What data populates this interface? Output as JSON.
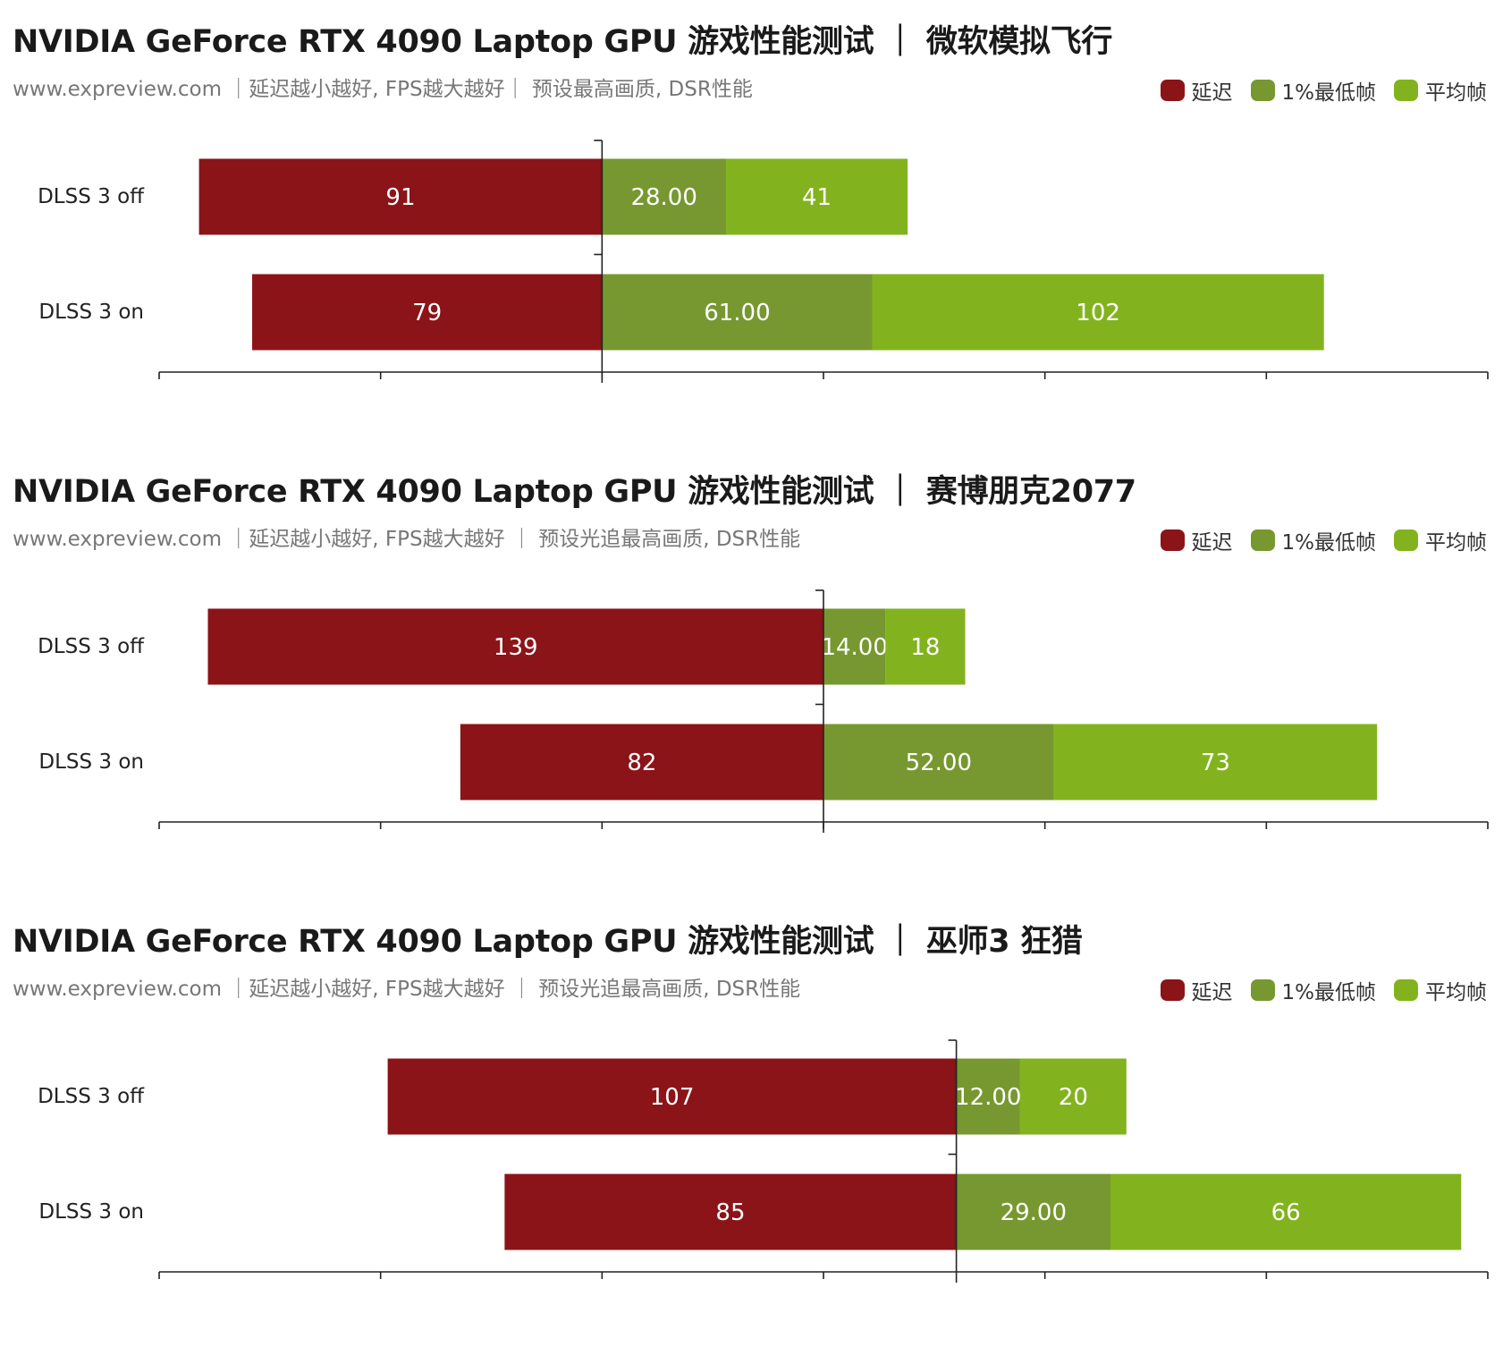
{
  "colors": {
    "latency": "#8b1418",
    "low1": "#779830",
    "avg": "#82b31e",
    "axis": "#222222"
  },
  "legend": {
    "latency": "延迟",
    "low1": "1%最低帧",
    "avg": "平均帧"
  },
  "chart_data": [
    {
      "type": "bar",
      "orientation": "horizontal-diverging-stacked",
      "title": "NVIDIA GeForce RTX 4090 Laptop GPU 游戏性能测试 ｜ 微软模拟飞行",
      "subtitle": "www.expreview.com ｜延迟越小越好, FPS越大越好｜ 预设最高画质, DSR性能",
      "categories": [
        "DLSS 3 off",
        "DLSS 3 on"
      ],
      "series": [
        {
          "name": "延迟",
          "values": [
            91,
            79
          ],
          "labels": [
            "91",
            "79"
          ]
        },
        {
          "name": "1%最低帧",
          "values": [
            28,
            61
          ],
          "labels": [
            "28.00",
            "61.00"
          ]
        },
        {
          "name": "平均帧",
          "values": [
            41,
            102
          ],
          "labels": [
            "41",
            "102"
          ]
        }
      ],
      "xlim": [
        -100,
        200
      ],
      "legend_position": "top-right"
    },
    {
      "type": "bar",
      "orientation": "horizontal-diverging-stacked",
      "title": "NVIDIA GeForce RTX 4090 Laptop GPU 游戏性能测试 ｜ 赛博朋克2077",
      "subtitle": "www.expreview.com ｜延迟越小越好, FPS越大越好 ｜ 预设光追最高画质, DSR性能",
      "categories": [
        "DLSS 3 off",
        "DLSS 3 on"
      ],
      "series": [
        {
          "name": "延迟",
          "values": [
            139,
            82
          ],
          "labels": [
            "139",
            "82"
          ]
        },
        {
          "name": "1%最低帧",
          "values": [
            14,
            52
          ],
          "labels": [
            "14.00",
            "52.00"
          ]
        },
        {
          "name": "平均帧",
          "values": [
            18,
            73
          ],
          "labels": [
            "18",
            "73"
          ]
        }
      ],
      "xlim": [
        -150,
        150
      ],
      "legend_position": "top-right"
    },
    {
      "type": "bar",
      "orientation": "horizontal-diverging-stacked",
      "title": "NVIDIA GeForce RTX 4090 Laptop GPU 游戏性能测试 ｜ 巫师3 狂猎",
      "subtitle": "www.expreview.com ｜延迟越小越好, FPS越大越好 ｜ 预设光追最高画质, DSR性能",
      "categories": [
        "DLSS 3 off",
        "DLSS 3 on"
      ],
      "series": [
        {
          "name": "延迟",
          "values": [
            107,
            85
          ],
          "labels": [
            "107",
            "85"
          ]
        },
        {
          "name": "1%最低帧",
          "values": [
            12,
            29
          ],
          "labels": [
            "12.00",
            "29.00"
          ]
        },
        {
          "name": "平均帧",
          "values": [
            20,
            66
          ],
          "labels": [
            "20",
            "66"
          ]
        }
      ],
      "xlim": [
        -150,
        100
      ],
      "legend_position": "top-right"
    }
  ]
}
